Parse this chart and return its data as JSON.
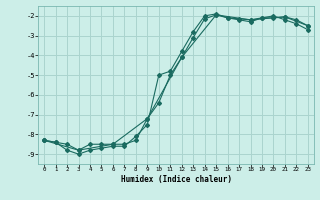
{
  "xlabel": "Humidex (Indice chaleur)",
  "ylabel": "",
  "bg_color": "#cceee8",
  "grid_color": "#aad4ce",
  "line_color": "#1a6b60",
  "xlim": [
    -0.5,
    23.5
  ],
  "ylim": [
    -9.5,
    -1.5
  ],
  "yticks": [
    -9,
    -8,
    -7,
    -6,
    -5,
    -4,
    -3,
    -2
  ],
  "xticks": [
    0,
    1,
    2,
    3,
    4,
    5,
    6,
    7,
    8,
    9,
    10,
    11,
    12,
    13,
    14,
    15,
    16,
    17,
    18,
    19,
    20,
    21,
    22,
    23
  ],
  "line1_x": [
    0,
    1,
    2,
    3,
    4,
    5,
    6,
    7,
    8,
    9,
    10,
    11,
    12,
    13,
    14,
    15,
    16,
    17,
    18,
    19,
    20,
    21,
    22,
    23
  ],
  "line1_y": [
    -8.3,
    -8.4,
    -8.5,
    -8.8,
    -8.5,
    -8.5,
    -8.5,
    -8.5,
    -8.3,
    -7.2,
    -6.4,
    -5.0,
    -4.1,
    -3.1,
    -2.15,
    -1.95,
    -2.1,
    -2.15,
    -2.2,
    -2.1,
    -2.1,
    -2.05,
    -2.2,
    -2.5
  ],
  "line2_x": [
    0,
    1,
    2,
    3,
    4,
    5,
    6,
    7,
    8,
    9,
    10,
    11,
    12,
    13,
    14,
    15,
    16,
    17,
    18,
    19,
    20,
    21,
    22,
    23
  ],
  "line2_y": [
    -8.3,
    -8.4,
    -8.8,
    -9.0,
    -8.8,
    -8.7,
    -8.6,
    -8.6,
    -8.1,
    -7.5,
    -5.0,
    -4.8,
    -3.8,
    -2.8,
    -2.0,
    -1.9,
    -2.1,
    -2.2,
    -2.3,
    -2.1,
    -2.0,
    -2.2,
    -2.4,
    -2.7
  ],
  "line3_x": [
    0,
    3,
    6,
    9,
    12,
    15,
    18,
    21,
    23
  ],
  "line3_y": [
    -8.3,
    -8.8,
    -8.5,
    -7.2,
    -4.1,
    -1.95,
    -2.2,
    -2.05,
    -2.5
  ]
}
